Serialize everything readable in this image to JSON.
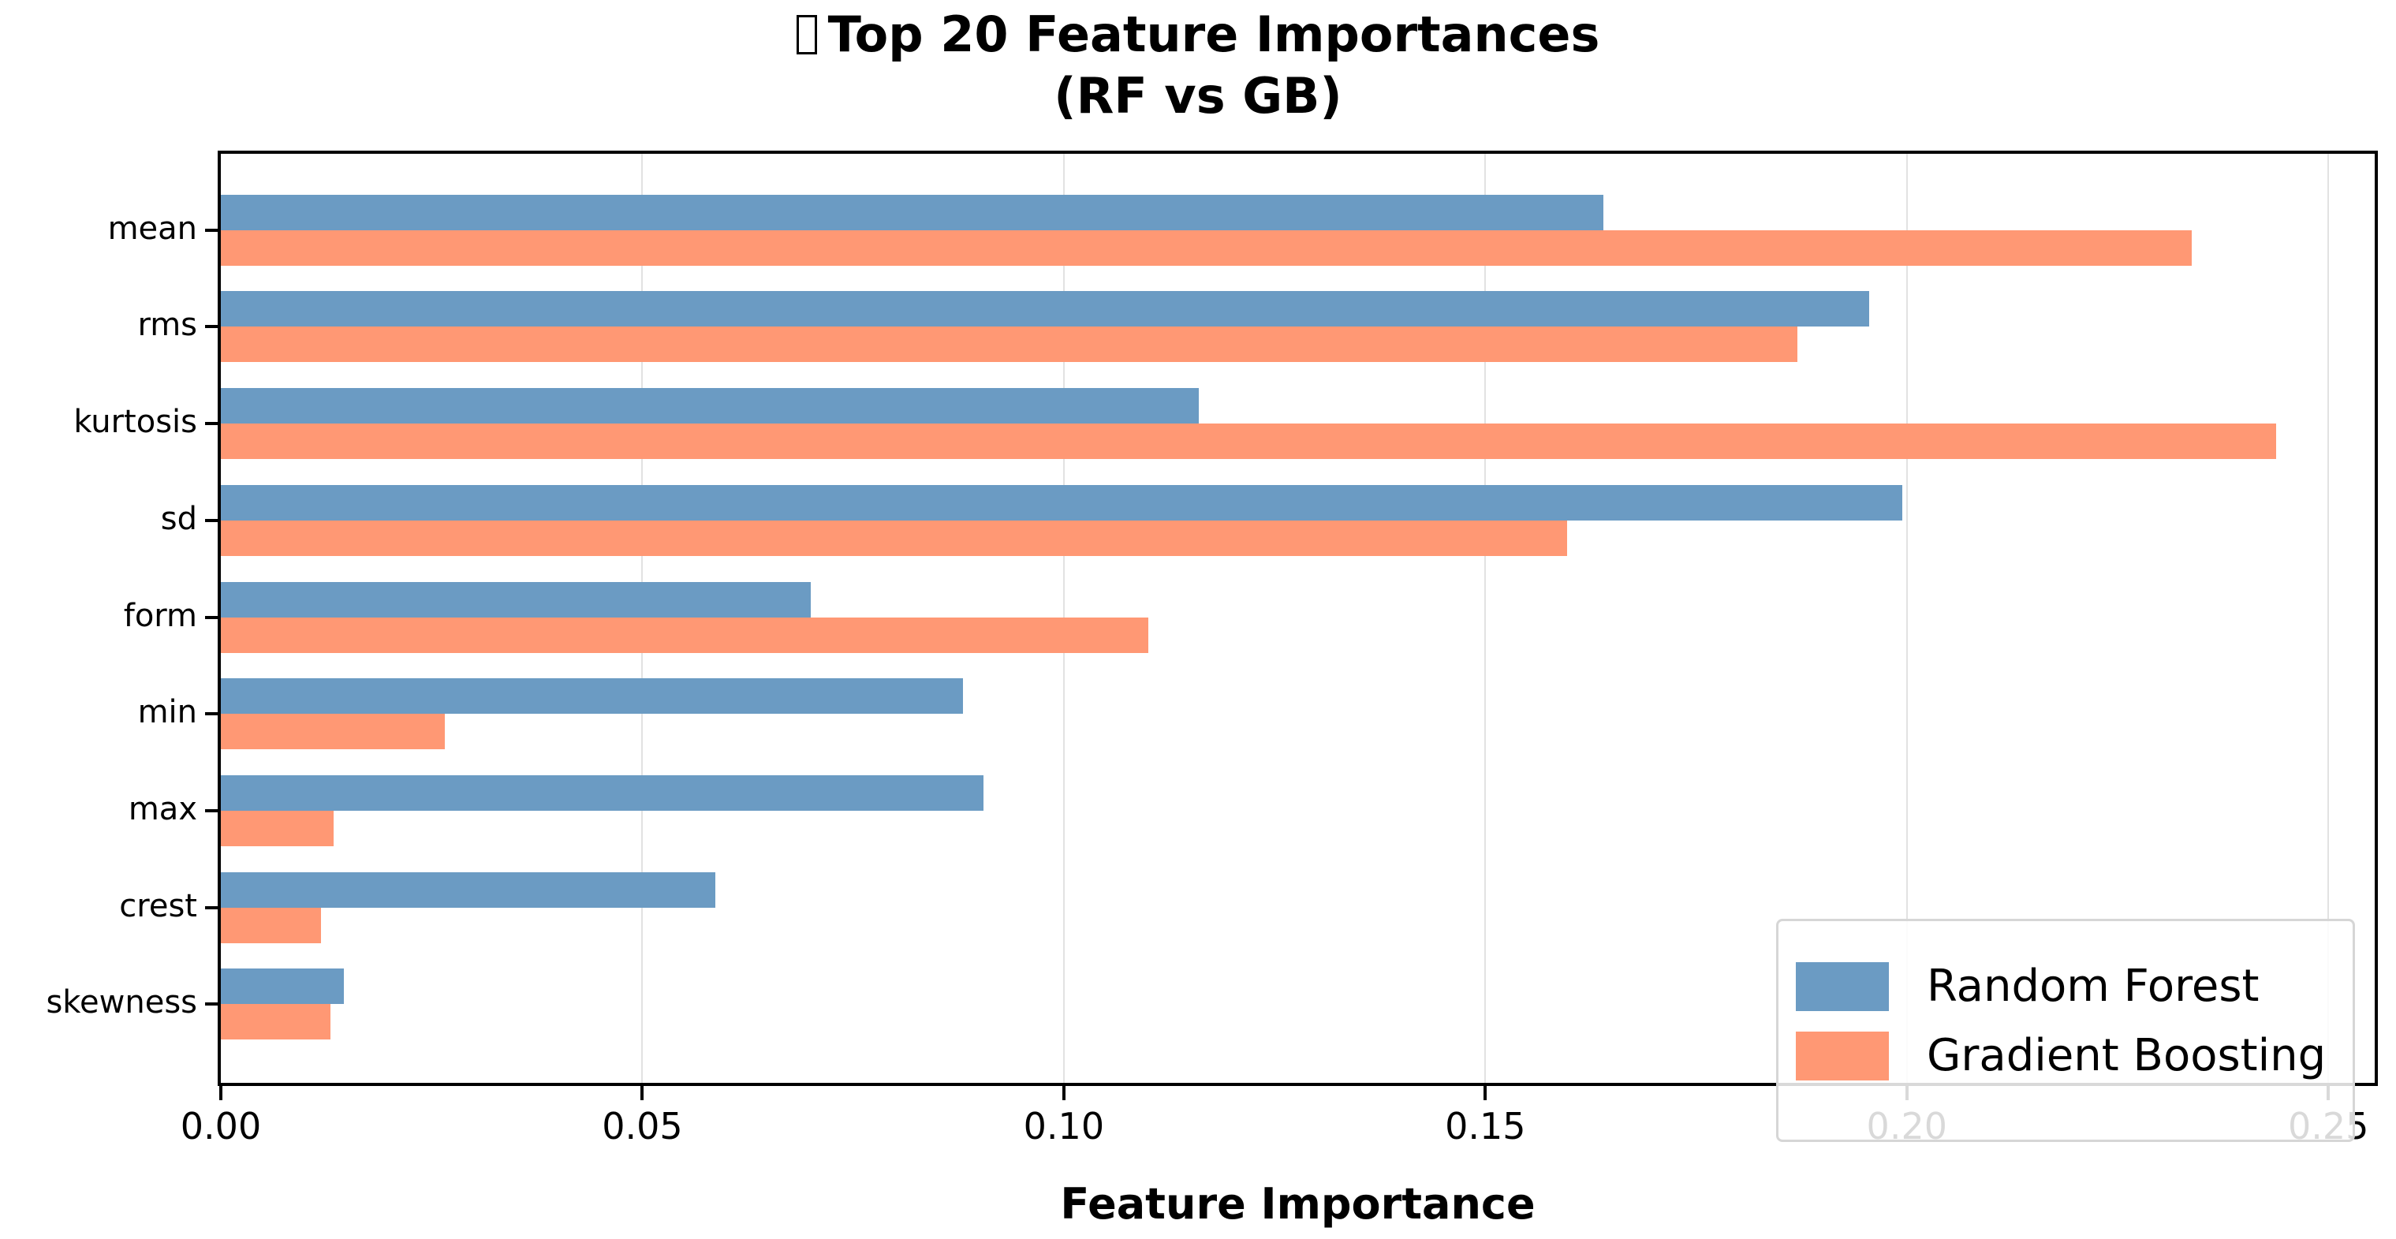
{
  "title": {
    "line1": "Top 20 Feature Importances",
    "line2": "(RF vs GB)",
    "missing_glyph": "tofu-box"
  },
  "colors": {
    "random_forest": "#6b9bc3",
    "gradient_boosting": "#ff9874",
    "gridline": "#e2e2e2",
    "axis": "#000000"
  },
  "x_tick_labels": [
    "0.00",
    "0.05",
    "0.10",
    "0.15",
    "0.20",
    "0.25"
  ],
  "x_axis_title": "Feature Importance",
  "legend": {
    "items": [
      {
        "label": "Random Forest"
      },
      {
        "label": "Gradient Boosting"
      }
    ]
  },
  "chart_data": {
    "type": "bar",
    "orientation": "horizontal",
    "title": "Top 20 Feature Importances (RF vs GB)",
    "xlabel": "Feature Importance",
    "ylabel": "",
    "xlim": [
      0,
      0.2555
    ],
    "xticks": [
      0.0,
      0.05,
      0.1,
      0.15,
      0.2,
      0.25
    ],
    "grid": {
      "x": true,
      "y": false
    },
    "legend_position": "lower right",
    "categories": [
      "mean",
      "rms",
      "kurtosis",
      "sd",
      "form",
      "min",
      "max",
      "crest",
      "skewness"
    ],
    "series": [
      {
        "name": "Random Forest",
        "color": "#6b9bc3",
        "values": [
          0.164,
          0.1955,
          0.116,
          0.1995,
          0.07,
          0.088,
          0.0905,
          0.0587,
          0.0146
        ]
      },
      {
        "name": "Gradient Boosting",
        "color": "#ff9874",
        "values": [
          0.2338,
          0.187,
          0.2438,
          0.1597,
          0.11,
          0.0266,
          0.0134,
          0.0119,
          0.013
        ]
      }
    ]
  }
}
